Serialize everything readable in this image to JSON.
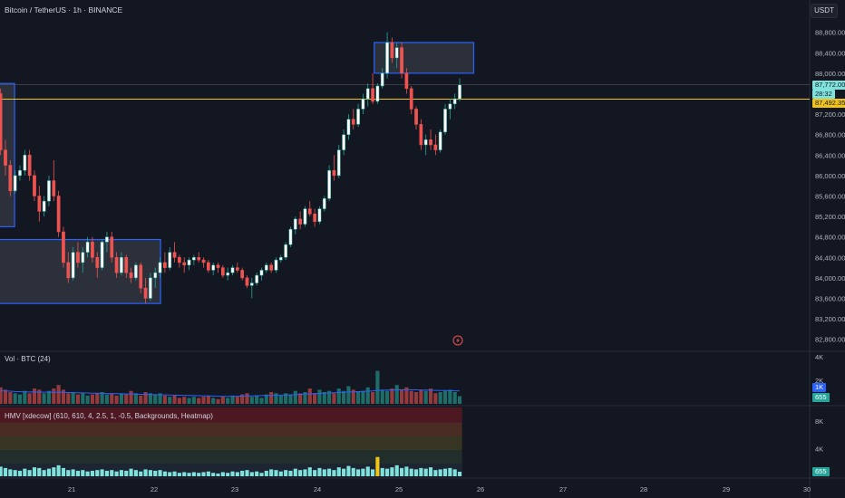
{
  "header": {
    "title": "Bitcoin / TetherUS · 1h · BINANCE",
    "currency": "USDT"
  },
  "price_axis": {
    "labels": [
      "88,800.00",
      "88,400.00",
      "88,000.00",
      "87,200.00",
      "86,800.00",
      "86,400.00",
      "86,000.00",
      "85,600.00",
      "85,200.00",
      "84,800.00",
      "84,400.00",
      "84,000.00",
      "83,600.00",
      "83,200.00",
      "82,800.00"
    ],
    "last_price": "87,772.00",
    "countdown": "28:32",
    "line_price": "87,492.35"
  },
  "volume_pane": {
    "title": "Vol · BTC (24)",
    "axis_labels": [
      "4K",
      "2K"
    ],
    "tag_ma": "1K",
    "tag_last": "655"
  },
  "hmv_pane": {
    "title": "HMV [xdecow] (610, 610, 4, 2.5, 1, -0.5, Backgrounds, Heatmap)",
    "axis_labels": [
      "8K",
      "4K"
    ],
    "tag_last": "655"
  },
  "time_axis": {
    "labels": [
      "21",
      "22",
      "23",
      "24",
      "25",
      "26",
      "27",
      "28",
      "29",
      "30"
    ]
  },
  "colors": {
    "up": "#26a69a",
    "down": "#ef5350",
    "box": "#2962ff",
    "level_line": "#f0c419",
    "last_price": "#80e2dc"
  },
  "chart_data": {
    "type": "candlestick",
    "symbol": "BTCUSDT",
    "interval": "1h",
    "ylim": [
      82600,
      88900
    ],
    "price_levels": {
      "last": 87772.0,
      "horizontal_line": 87492.35
    },
    "x_ticks": [
      "21",
      "22",
      "23",
      "24",
      "25",
      "26",
      "27",
      "28",
      "29",
      "30"
    ],
    "ohlc": [
      [
        87600,
        87700,
        86400,
        86500
      ],
      [
        86500,
        86700,
        86000,
        86200
      ],
      [
        86200,
        86300,
        85600,
        85700
      ],
      [
        85700,
        86100,
        85650,
        86000
      ],
      [
        86000,
        86200,
        85900,
        86100
      ],
      [
        86100,
        86500,
        86000,
        86400
      ],
      [
        86400,
        86500,
        85900,
        86000
      ],
      [
        86000,
        86100,
        85500,
        85600
      ],
      [
        85600,
        85800,
        85100,
        85300
      ],
      [
        85300,
        85600,
        85200,
        85500
      ],
      [
        85500,
        86000,
        85400,
        85900
      ],
      [
        85900,
        86300,
        85500,
        85600
      ],
      [
        85600,
        85700,
        84800,
        84900
      ],
      [
        84900,
        85000,
        84200,
        84300
      ],
      [
        84300,
        84500,
        83900,
        84000
      ],
      [
        84000,
        84600,
        83950,
        84500
      ],
      [
        84500,
        84700,
        84200,
        84300
      ],
      [
        84300,
        84600,
        84100,
        84500
      ],
      [
        84500,
        84800,
        84400,
        84700
      ],
      [
        84700,
        84800,
        84300,
        84400
      ],
      [
        84400,
        84500,
        84000,
        84200
      ],
      [
        84200,
        84750,
        84150,
        84700
      ],
      [
        84700,
        84900,
        84500,
        84800
      ],
      [
        84800,
        84900,
        84300,
        84400
      ],
      [
        84400,
        84500,
        84000,
        84100
      ],
      [
        84100,
        84500,
        84050,
        84400
      ],
      [
        84400,
        84450,
        84000,
        84100
      ],
      [
        84100,
        84200,
        83900,
        84000
      ],
      [
        84000,
        84300,
        83950,
        84250
      ],
      [
        84250,
        84300,
        83700,
        83800
      ],
      [
        83800,
        84000,
        83500,
        83600
      ],
      [
        83600,
        84100,
        83550,
        84000
      ],
      [
        84000,
        84200,
        83800,
        84100
      ],
      [
        84100,
        84400,
        84000,
        84300
      ],
      [
        84300,
        84500,
        84100,
        84200
      ],
      [
        84200,
        84600,
        84150,
        84500
      ],
      [
        84500,
        84700,
        84300,
        84400
      ],
      [
        84400,
        84450,
        84200,
        84300
      ],
      [
        84300,
        84400,
        84100,
        84250
      ],
      [
        84250,
        84400,
        84150,
        84350
      ],
      [
        84350,
        84450,
        84250,
        84400
      ],
      [
        84400,
        84500,
        84300,
        84350
      ],
      [
        84350,
        84400,
        84200,
        84300
      ],
      [
        84300,
        84350,
        84100,
        84150
      ],
      [
        84150,
        84300,
        84050,
        84250
      ],
      [
        84250,
        84300,
        84100,
        84200
      ],
      [
        84200,
        84250,
        84000,
        84050
      ],
      [
        84050,
        84200,
        83950,
        84100
      ],
      [
        84100,
        84250,
        84050,
        84200
      ],
      [
        84200,
        84300,
        84100,
        84150
      ],
      [
        84150,
        84200,
        83950,
        84000
      ],
      [
        84000,
        84050,
        83800,
        83850
      ],
      [
        83850,
        84000,
        83600,
        83900
      ],
      [
        83900,
        84100,
        83850,
        84050
      ],
      [
        84050,
        84200,
        83950,
        84150
      ],
      [
        84150,
        84300,
        84100,
        84250
      ],
      [
        84250,
        84300,
        84100,
        84150
      ],
      [
        84150,
        84400,
        84100,
        84350
      ],
      [
        84350,
        84450,
        84300,
        84400
      ],
      [
        84400,
        84700,
        84350,
        84650
      ],
      [
        84650,
        85000,
        84600,
        84950
      ],
      [
        84950,
        85200,
        84850,
        85150
      ],
      [
        85150,
        85300,
        84950,
        85050
      ],
      [
        85050,
        85400,
        85000,
        85350
      ],
      [
        85350,
        85500,
        85200,
        85250
      ],
      [
        85250,
        85350,
        85000,
        85100
      ],
      [
        85100,
        85400,
        85050,
        85350
      ],
      [
        85350,
        85600,
        85300,
        85550
      ],
      [
        85550,
        86200,
        85500,
        86100
      ],
      [
        86100,
        86400,
        85900,
        86000
      ],
      [
        86000,
        86600,
        85950,
        86500
      ],
      [
        86500,
        86900,
        86400,
        86800
      ],
      [
        86800,
        87200,
        86700,
        87100
      ],
      [
        87100,
        87300,
        86900,
        87000
      ],
      [
        87000,
        87400,
        86950,
        87300
      ],
      [
        87300,
        87600,
        87200,
        87500
      ],
      [
        87500,
        87800,
        87350,
        87700
      ],
      [
        87700,
        88000,
        87400,
        87450
      ],
      [
        87450,
        87800,
        87400,
        87750
      ],
      [
        87750,
        88100,
        87700,
        88000
      ],
      [
        88000,
        88800,
        87900,
        88600
      ],
      [
        88600,
        88700,
        88200,
        88300
      ],
      [
        88300,
        88600,
        88100,
        88500
      ],
      [
        88500,
        88600,
        87900,
        88000
      ],
      [
        88000,
        88100,
        87600,
        87700
      ],
      [
        87700,
        87750,
        87200,
        87300
      ],
      [
        87300,
        87350,
        86900,
        87000
      ],
      [
        87000,
        87100,
        86500,
        86600
      ],
      [
        86600,
        86800,
        86400,
        86700
      ],
      [
        86700,
        86900,
        86500,
        86600
      ],
      [
        86600,
        86800,
        86400,
        86500
      ],
      [
        86500,
        86900,
        86450,
        86850
      ],
      [
        86850,
        87400,
        86800,
        87300
      ],
      [
        87300,
        87500,
        87100,
        87400
      ],
      [
        87400,
        87600,
        87300,
        87500
      ],
      [
        87500,
        87900,
        87450,
        87772
      ]
    ],
    "volume": [
      1400,
      1200,
      1000,
      900,
      800,
      1100,
      900,
      1300,
      1200,
      900,
      1100,
      1300,
      1600,
      1200,
      900,
      1000,
      800,
      900,
      700,
      800,
      900,
      1000,
      800,
      900,
      700,
      900,
      800,
      1100,
      900,
      700,
      1000,
      900,
      800,
      900,
      700,
      600,
      700,
      500,
      600,
      500,
      600,
      500,
      600,
      700,
      500,
      400,
      600,
      500,
      700,
      600,
      800,
      900,
      600,
      700,
      500,
      800,
      1000,
      900,
      700,
      900,
      800,
      1100,
      900,
      1000,
      1300,
      900,
      1200,
      1000,
      1100,
      900,
      1300,
      1100,
      1500,
      1200,
      1000,
      1100,
      1400,
      1000,
      2800,
      1200,
      1100,
      1300,
      1600,
      1200,
      1400,
      1100,
      1000,
      1200,
      1100,
      1300,
      900,
      1000,
      1100,
      1200,
      1000,
      655
    ],
    "volume_ma": [
      1100,
      1100,
      1080,
      1050,
      1030,
      1020,
      1010,
      1000,
      1000,
      990,
      990,
      980,
      980,
      970,
      960,
      950,
      940,
      930,
      920,
      910,
      900,
      890,
      880,
      870,
      860,
      850,
      840,
      830,
      820,
      810,
      800,
      790,
      780,
      770,
      760,
      750,
      740,
      730,
      720,
      710,
      700,
      690,
      680,
      670,
      660,
      650,
      640,
      640,
      640,
      650,
      660,
      670,
      680,
      690,
      700,
      710,
      720,
      730,
      740,
      750,
      760,
      780,
      800,
      820,
      840,
      860,
      880,
      900,
      920,
      940,
      960,
      980,
      1000,
      1020,
      1040,
      1060,
      1080,
      1100,
      1150,
      1160,
      1170,
      1180,
      1190,
      1200,
      1200,
      1200,
      1190,
      1180,
      1170,
      1160,
      1150,
      1140,
      1130,
      1120,
      1110,
      1100
    ]
  }
}
